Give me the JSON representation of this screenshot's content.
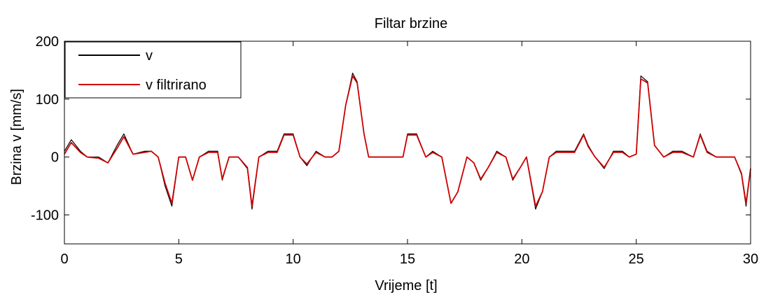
{
  "chart_data": {
    "type": "line",
    "title": "Filtar brzine",
    "xlabel": "Vrijeme [t]",
    "ylabel": "Brzina v   [mm/s]",
    "xlim": [
      0,
      30
    ],
    "ylim": [
      -150,
      200
    ],
    "xticks": [
      0,
      5,
      10,
      15,
      20,
      25,
      30
    ],
    "yticks": [
      -100,
      0,
      100,
      200
    ],
    "grid": false,
    "legend_position": "top-left",
    "series": [
      {
        "name": "v",
        "color": "#000000",
        "x": [
          0,
          0.3,
          0.7,
          1.0,
          1.5,
          1.9,
          2.3,
          2.6,
          3.0,
          3.5,
          3.8,
          4.1,
          4.4,
          4.7,
          5.0,
          5.3,
          5.6,
          5.9,
          6.3,
          6.7,
          6.9,
          7.2,
          7.6,
          8.0,
          8.2,
          8.5,
          8.9,
          9.3,
          9.6,
          9.9,
          10.0,
          10.3,
          10.6,
          11.0,
          11.4,
          11.7,
          12.0,
          12.3,
          12.6,
          12.8,
          13.1,
          13.3,
          13.6,
          14.0,
          14.4,
          14.8,
          15.0,
          15.4,
          15.8,
          16.1,
          16.5,
          16.9,
          17.2,
          17.6,
          17.9,
          18.2,
          18.5,
          18.9,
          19.3,
          19.6,
          19.9,
          20.2,
          20.6,
          20.9,
          21.2,
          21.5,
          21.9,
          22.3,
          22.7,
          22.9,
          23.2,
          23.6,
          24.0,
          24.4,
          24.7,
          25.0,
          25.2,
          25.5,
          25.8,
          26.2,
          26.6,
          27.0,
          27.5,
          27.8,
          28.1,
          28.5,
          29.0,
          29.3,
          29.6,
          29.8,
          30.0
        ],
        "y": [
          10,
          30,
          10,
          0,
          0,
          -10,
          20,
          40,
          5,
          10,
          10,
          0,
          -50,
          -85,
          0,
          0,
          -40,
          0,
          10,
          10,
          -40,
          0,
          0,
          -20,
          -90,
          0,
          10,
          10,
          40,
          40,
          40,
          0,
          -15,
          10,
          0,
          0,
          10,
          90,
          145,
          130,
          40,
          0,
          0,
          0,
          0,
          0,
          40,
          40,
          0,
          10,
          0,
          -80,
          -60,
          0,
          -10,
          -40,
          -20,
          10,
          0,
          -40,
          -20,
          0,
          -90,
          -60,
          0,
          10,
          10,
          10,
          40,
          20,
          0,
          -20,
          10,
          10,
          0,
          5,
          140,
          130,
          20,
          0,
          10,
          10,
          0,
          40,
          10,
          0,
          0,
          0,
          -30,
          -85,
          -20
        ]
      },
      {
        "name": "v filtrirano",
        "color": "#cc0000",
        "x": [
          0,
          0.3,
          0.7,
          1.0,
          1.5,
          1.9,
          2.3,
          2.6,
          3.0,
          3.5,
          3.8,
          4.1,
          4.4,
          4.7,
          5.0,
          5.3,
          5.6,
          5.9,
          6.3,
          6.7,
          6.9,
          7.2,
          7.6,
          8.0,
          8.2,
          8.5,
          8.9,
          9.3,
          9.6,
          9.9,
          10.0,
          10.3,
          10.6,
          11.0,
          11.4,
          11.7,
          12.0,
          12.3,
          12.6,
          12.8,
          13.1,
          13.3,
          13.6,
          14.0,
          14.4,
          14.8,
          15.0,
          15.4,
          15.8,
          16.1,
          16.5,
          16.9,
          17.2,
          17.6,
          17.9,
          18.2,
          18.5,
          18.9,
          19.3,
          19.6,
          19.9,
          20.2,
          20.6,
          20.9,
          21.2,
          21.5,
          21.9,
          22.3,
          22.7,
          22.9,
          23.2,
          23.6,
          24.0,
          24.4,
          24.7,
          25.0,
          25.2,
          25.5,
          25.8,
          26.2,
          26.6,
          27.0,
          27.5,
          27.8,
          28.1,
          28.5,
          29.0,
          29.3,
          29.6,
          29.8,
          30.0
        ],
        "y": [
          5,
          25,
          8,
          0,
          -2,
          -10,
          15,
          35,
          5,
          8,
          10,
          0,
          -45,
          -80,
          0,
          0,
          -40,
          0,
          8,
          8,
          -38,
          0,
          0,
          -18,
          -85,
          0,
          8,
          8,
          38,
          38,
          38,
          0,
          -12,
          8,
          0,
          0,
          10,
          90,
          140,
          128,
          40,
          0,
          0,
          0,
          0,
          0,
          38,
          38,
          0,
          8,
          0,
          -80,
          -60,
          0,
          -10,
          -38,
          -20,
          8,
          0,
          -38,
          -20,
          0,
          -85,
          -60,
          0,
          8,
          8,
          8,
          38,
          18,
          0,
          -18,
          8,
          8,
          0,
          5,
          135,
          128,
          20,
          0,
          8,
          8,
          0,
          38,
          8,
          0,
          0,
          0,
          -28,
          -80,
          -20
        ]
      }
    ]
  }
}
